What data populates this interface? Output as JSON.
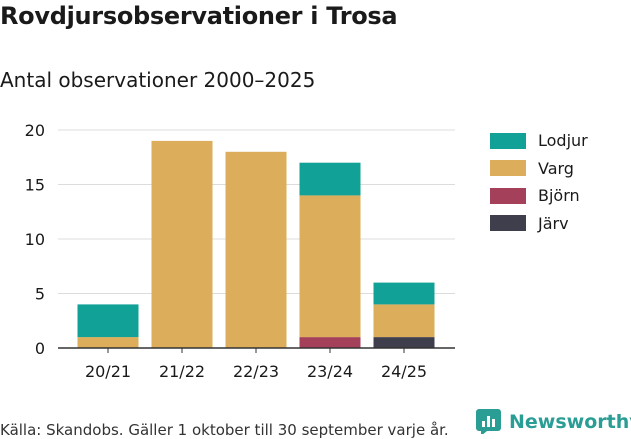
{
  "title": "Rovdjursobservationer i Trosa",
  "subtitle": "Antal observationer 2000–2025",
  "source": "Källa: Skandobs. Gäller 1 oktober till 30 september varje år.",
  "brand": "Newsworthy",
  "chart_data": {
    "type": "bar",
    "stacked": true,
    "categories": [
      "20/21",
      "21/22",
      "22/23",
      "23/24",
      "24/25"
    ],
    "series": [
      {
        "name": "Järv",
        "color": "#3f3e4d",
        "values": [
          0,
          0,
          0,
          0,
          1
        ]
      },
      {
        "name": "Björn",
        "color": "#a5405a",
        "values": [
          0,
          0,
          0,
          1,
          0
        ]
      },
      {
        "name": "Varg",
        "color": "#dcad5a",
        "values": [
          1,
          19,
          18,
          13,
          3
        ]
      },
      {
        "name": "Lodjur",
        "color": "#12a196",
        "values": [
          3,
          0,
          0,
          3,
          2
        ]
      }
    ],
    "legend_order": [
      "Lodjur",
      "Varg",
      "Björn",
      "Järv"
    ],
    "ylim": [
      0,
      20
    ],
    "yticks": [
      0,
      5,
      10,
      15,
      20
    ],
    "xlabel": "",
    "ylabel": "",
    "grid": true,
    "legend_position": "right"
  }
}
